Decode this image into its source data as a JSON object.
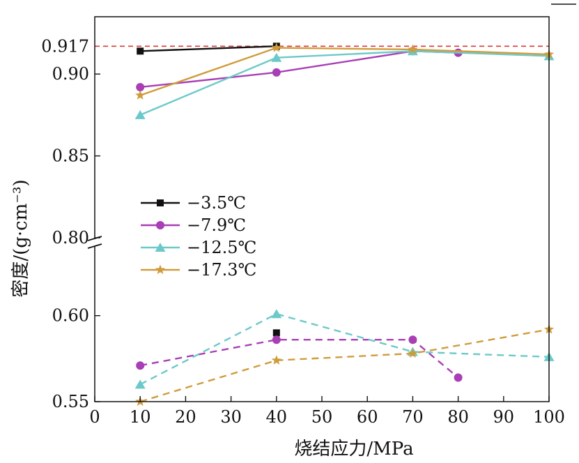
{
  "chart_data": {
    "type": "line",
    "xlabel": "烧结应力/MPa",
    "ylabel": "密度/(g·cm⁻³)",
    "xlim": [
      0,
      100
    ],
    "x_ticks": [
      "0",
      "10",
      "20",
      "30",
      "40",
      "50",
      "60",
      "70",
      "80",
      "90",
      "100"
    ],
    "y_axis_break": true,
    "upper_panel": {
      "ylim": [
        0.8,
        0.935
      ],
      "y_ticks": [
        "0.80",
        "0.85",
        "0.90"
      ]
    },
    "lower_panel": {
      "ylim": [
        0.55,
        0.64
      ],
      "y_ticks": [
        "0.55",
        "0.60"
      ]
    },
    "reference_line": {
      "value": 0.917,
      "label": "0.917",
      "style": "dashed",
      "color": "#d9383a"
    },
    "legend_position": "center-left",
    "series": [
      {
        "name": "−3.5℃",
        "color": "#111111",
        "marker": "square",
        "upper": {
          "x": [
            10,
            40
          ],
          "y": [
            0.914,
            0.917
          ]
        },
        "lower": {
          "x": [
            40
          ],
          "y": [
            0.59
          ]
        }
      },
      {
        "name": "−7.9℃",
        "color": "#a83fb5",
        "marker": "circle",
        "upper": {
          "x": [
            10,
            40,
            70,
            80
          ],
          "y": [
            0.892,
            0.901,
            0.914,
            0.913
          ]
        },
        "lower": {
          "x": [
            10,
            40,
            70,
            80
          ],
          "y": [
            0.571,
            0.586,
            0.586,
            0.564
          ]
        }
      },
      {
        "name": "−12.5℃",
        "color": "#6cc9c9",
        "marker": "triangle",
        "upper": {
          "x": [
            10,
            40,
            70,
            100
          ],
          "y": [
            0.875,
            0.91,
            0.914,
            0.911
          ]
        },
        "lower": {
          "x": [
            10,
            40,
            70,
            100
          ],
          "y": [
            0.56,
            0.601,
            0.579,
            0.576
          ]
        }
      },
      {
        "name": "−17.3℃",
        "color": "#cf9c3c",
        "marker": "star",
        "upper": {
          "x": [
            10,
            40,
            70,
            100
          ],
          "y": [
            0.887,
            0.916,
            0.915,
            0.912
          ]
        },
        "lower": {
          "x": [
            10,
            40,
            70,
            100
          ],
          "y": [
            0.55,
            0.574,
            0.578,
            0.592
          ]
        }
      }
    ]
  }
}
